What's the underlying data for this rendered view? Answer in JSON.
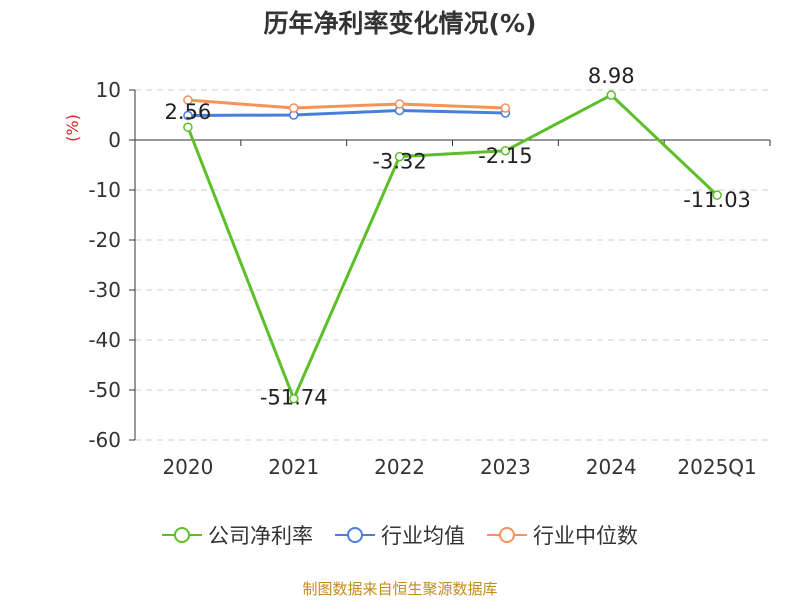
{
  "title": "历年净利率变化情况(%)",
  "source": "制图数据来自恒生聚源数据库",
  "colors": {
    "company": "#5cbf2a",
    "industry_avg": "#4a7fd9",
    "industry_median": "#f5935a",
    "ylabel": "#e02020",
    "grid": "#cccccc",
    "axis": "#333333",
    "text": "#333333"
  },
  "chart_data": {
    "type": "line",
    "title": "历年净利率变化情况(%)",
    "xlabel": "",
    "ylabel": "(%)",
    "categories": [
      "2020",
      "2021",
      "2022",
      "2023",
      "2024",
      "2025Q1"
    ],
    "ylim": [
      -60,
      10
    ],
    "yticks": [
      10,
      0,
      -10,
      -20,
      -30,
      -40,
      -50,
      -60
    ],
    "grid": true,
    "legend_position": "bottom",
    "series": [
      {
        "name": "公司净利率",
        "key": "company",
        "values": [
          2.56,
          -51.74,
          -3.32,
          -2.15,
          8.98,
          -11.03
        ],
        "labels": [
          "2.56",
          "-51.74",
          "-3.32",
          "-2.15",
          "8.98",
          "-11.03"
        ]
      },
      {
        "name": "行业均值",
        "key": "industry_avg",
        "values": [
          4.9,
          5.0,
          5.9,
          5.4,
          null,
          null
        ]
      },
      {
        "name": "行业中位数",
        "key": "industry_median",
        "values": [
          8.0,
          6.4,
          7.2,
          6.4,
          null,
          null
        ]
      }
    ]
  }
}
